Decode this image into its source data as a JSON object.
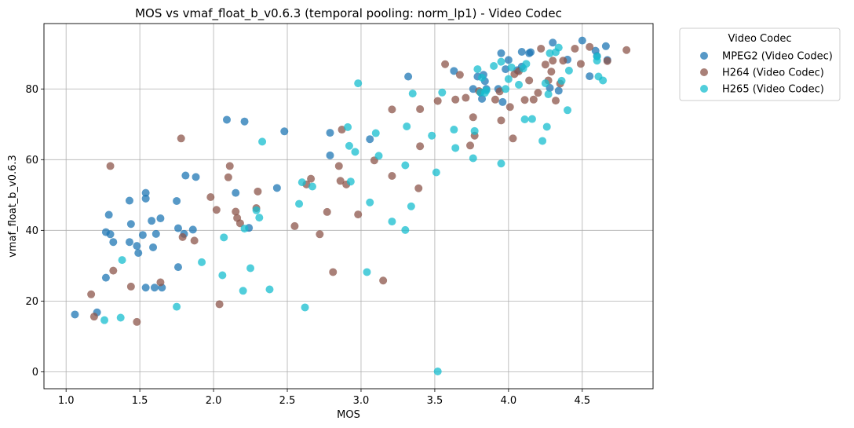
{
  "chart_data": {
    "type": "scatter",
    "title": "MOS vs vmaf_float_b_v0.6.3 (temporal pooling: norm_lp1) - Video Codec",
    "xlabel": "MOS",
    "ylabel": "vmaf_float_b_v0.6.3",
    "xlim": [
      0.85,
      4.98
    ],
    "ylim": [
      -4.8,
      98.5
    ],
    "xticks": [
      "1.0",
      "1.5",
      "2.0",
      "2.5",
      "3.0",
      "3.5",
      "4.0",
      "4.5"
    ],
    "yticks": [
      "0",
      "20",
      "40",
      "60",
      "80"
    ],
    "grid": true,
    "legend_title": "Video Codec",
    "legend_position": "outside-top-right",
    "series": [
      {
        "name": "MPEG2 (Video Codec)",
        "color": "#1f77b4",
        "points": [
          [
            1.06,
            16.2
          ],
          [
            1.21,
            16.8
          ],
          [
            1.27,
            26.6
          ],
          [
            1.27,
            39.5
          ],
          [
            1.29,
            44.4
          ],
          [
            1.3,
            38.9
          ],
          [
            1.32,
            36.7
          ],
          [
            1.43,
            48.4
          ],
          [
            1.43,
            36.7
          ],
          [
            1.44,
            41.8
          ],
          [
            1.48,
            35.6
          ],
          [
            1.49,
            33.6
          ],
          [
            1.52,
            38.7
          ],
          [
            1.54,
            50.6
          ],
          [
            1.54,
            49.0
          ],
          [
            1.54,
            23.8
          ],
          [
            1.58,
            42.7
          ],
          [
            1.59,
            35.2
          ],
          [
            1.6,
            23.8
          ],
          [
            1.61,
            39.0
          ],
          [
            1.64,
            43.4
          ],
          [
            1.65,
            23.8
          ],
          [
            1.75,
            48.3
          ],
          [
            1.76,
            40.6
          ],
          [
            1.76,
            29.6
          ],
          [
            1.8,
            39.0
          ],
          [
            1.81,
            55.5
          ],
          [
            1.86,
            40.2
          ],
          [
            1.88,
            55.1
          ],
          [
            2.09,
            71.3
          ],
          [
            2.15,
            50.6
          ],
          [
            2.21,
            70.8
          ],
          [
            2.24,
            40.7
          ],
          [
            2.43,
            52.0
          ],
          [
            2.48,
            68.0
          ],
          [
            2.79,
            67.6
          ],
          [
            2.79,
            61.2
          ],
          [
            3.06,
            65.8
          ],
          [
            3.32,
            83.5
          ],
          [
            3.63,
            85.1
          ],
          [
            3.76,
            80.0
          ],
          [
            3.79,
            83.5
          ],
          [
            3.81,
            79.0
          ],
          [
            3.82,
            77.2
          ],
          [
            3.83,
            84.0
          ],
          [
            3.84,
            82.2
          ],
          [
            3.85,
            80.0
          ],
          [
            3.93,
            80.0
          ],
          [
            3.95,
            90.1
          ],
          [
            3.96,
            76.3
          ],
          [
            3.98,
            85.6
          ],
          [
            4.0,
            88.2
          ],
          [
            4.06,
            85.3
          ],
          [
            4.09,
            86.3
          ],
          [
            4.09,
            90.5
          ],
          [
            4.14,
            90.1
          ],
          [
            4.15,
            90.4
          ],
          [
            4.28,
            80.3
          ],
          [
            4.3,
            93.1
          ],
          [
            4.34,
            79.5
          ],
          [
            4.4,
            88.3
          ],
          [
            4.5,
            93.7
          ],
          [
            4.55,
            83.6
          ],
          [
            4.59,
            90.8
          ],
          [
            4.6,
            89.3
          ],
          [
            4.66,
            92.1
          ],
          [
            4.67,
            88.2
          ]
        ]
      },
      {
        "name": "H264 (Video Codec)",
        "color": "#8c564b",
        "points": [
          [
            1.17,
            21.9
          ],
          [
            1.19,
            15.6
          ],
          [
            1.3,
            58.2
          ],
          [
            1.32,
            28.6
          ],
          [
            1.44,
            24.1
          ],
          [
            1.48,
            14.1
          ],
          [
            1.64,
            25.3
          ],
          [
            1.78,
            66.0
          ],
          [
            1.79,
            38.1
          ],
          [
            1.87,
            37.1
          ],
          [
            1.98,
            49.4
          ],
          [
            2.02,
            45.8
          ],
          [
            2.04,
            19.1
          ],
          [
            2.1,
            55.0
          ],
          [
            2.11,
            58.2
          ],
          [
            2.15,
            45.3
          ],
          [
            2.16,
            43.5
          ],
          [
            2.18,
            42.0
          ],
          [
            2.29,
            46.3
          ],
          [
            2.3,
            51.0
          ],
          [
            2.55,
            41.2
          ],
          [
            2.63,
            53.0
          ],
          [
            2.66,
            54.6
          ],
          [
            2.72,
            38.9
          ],
          [
            2.77,
            45.2
          ],
          [
            2.81,
            28.2
          ],
          [
            2.85,
            58.2
          ],
          [
            2.86,
            54.0
          ],
          [
            2.87,
            68.5
          ],
          [
            2.9,
            53.0
          ],
          [
            2.98,
            44.5
          ],
          [
            3.09,
            59.8
          ],
          [
            3.15,
            25.8
          ],
          [
            3.21,
            74.2
          ],
          [
            3.21,
            55.4
          ],
          [
            3.39,
            51.9
          ],
          [
            3.4,
            63.8
          ],
          [
            3.4,
            74.3
          ],
          [
            3.52,
            76.6
          ],
          [
            3.57,
            87.0
          ],
          [
            3.64,
            77.0
          ],
          [
            3.67,
            84.0
          ],
          [
            3.71,
            77.5
          ],
          [
            3.74,
            64.0
          ],
          [
            3.76,
            72.0
          ],
          [
            3.77,
            66.8
          ],
          [
            3.8,
            79.4
          ],
          [
            3.91,
            77.0
          ],
          [
            3.94,
            79.3
          ],
          [
            3.95,
            71.1
          ],
          [
            4.01,
            74.9
          ],
          [
            4.03,
            66.0
          ],
          [
            4.04,
            84.2
          ],
          [
            4.07,
            85.0
          ],
          [
            4.11,
            76.9
          ],
          [
            4.14,
            82.4
          ],
          [
            4.17,
            77.0
          ],
          [
            4.2,
            78.9
          ],
          [
            4.22,
            91.4
          ],
          [
            4.25,
            86.9
          ],
          [
            4.27,
            82.4
          ],
          [
            4.29,
            84.9
          ],
          [
            4.3,
            88.0
          ],
          [
            4.32,
            76.7
          ],
          [
            4.35,
            81.5
          ],
          [
            4.37,
            88.0
          ],
          [
            4.45,
            91.4
          ],
          [
            4.49,
            87.1
          ],
          [
            4.55,
            91.9
          ],
          [
            4.67,
            87.9
          ],
          [
            4.8,
            91.0
          ]
        ]
      },
      {
        "name": "H265 (Video Codec)",
        "color": "#17becf",
        "points": [
          [
            1.26,
            14.6
          ],
          [
            1.37,
            15.3
          ],
          [
            1.38,
            31.6
          ],
          [
            1.75,
            18.4
          ],
          [
            1.92,
            31.0
          ],
          [
            2.06,
            27.3
          ],
          [
            2.07,
            38.0
          ],
          [
            2.2,
            22.9
          ],
          [
            2.21,
            40.5
          ],
          [
            2.25,
            29.3
          ],
          [
            2.29,
            45.7
          ],
          [
            2.31,
            43.6
          ],
          [
            2.33,
            65.1
          ],
          [
            2.38,
            23.3
          ],
          [
            2.58,
            47.5
          ],
          [
            2.6,
            53.6
          ],
          [
            2.62,
            18.2
          ],
          [
            2.67,
            52.4
          ],
          [
            2.91,
            69.2
          ],
          [
            2.92,
            63.9
          ],
          [
            2.93,
            53.8
          ],
          [
            2.96,
            62.2
          ],
          [
            2.98,
            81.6
          ],
          [
            3.04,
            28.2
          ],
          [
            3.06,
            47.9
          ],
          [
            3.1,
            67.5
          ],
          [
            3.12,
            61.1
          ],
          [
            3.21,
            42.5
          ],
          [
            3.3,
            40.1
          ],
          [
            3.3,
            58.4
          ],
          [
            3.31,
            69.4
          ],
          [
            3.34,
            46.8
          ],
          [
            3.35,
            78.7
          ],
          [
            3.48,
            66.8
          ],
          [
            3.51,
            56.4
          ],
          [
            3.52,
            0.1
          ],
          [
            3.55,
            79.0
          ],
          [
            3.63,
            68.5
          ],
          [
            3.64,
            63.3
          ],
          [
            3.76,
            60.4
          ],
          [
            3.77,
            68.1
          ],
          [
            3.79,
            85.6
          ],
          [
            3.81,
            79.0
          ],
          [
            3.82,
            83.2
          ],
          [
            3.84,
            78.9
          ],
          [
            3.85,
            79.6
          ],
          [
            3.9,
            86.5
          ],
          [
            3.95,
            58.9
          ],
          [
            3.95,
            87.7
          ],
          [
            3.98,
            80.0
          ],
          [
            4.0,
            82.8
          ],
          [
            4.02,
            86.1
          ],
          [
            4.07,
            81.2
          ],
          [
            4.1,
            85.8
          ],
          [
            4.11,
            71.4
          ],
          [
            4.12,
            87.1
          ],
          [
            4.16,
            71.5
          ],
          [
            4.23,
            65.3
          ],
          [
            4.25,
            81.6
          ],
          [
            4.26,
            69.3
          ],
          [
            4.27,
            78.5
          ],
          [
            4.28,
            90.1
          ],
          [
            4.32,
            90.4
          ],
          [
            4.34,
            91.7
          ],
          [
            4.36,
            82.3
          ],
          [
            4.4,
            74.0
          ],
          [
            4.41,
            85.2
          ],
          [
            4.6,
            89.2
          ],
          [
            4.6,
            88.0
          ],
          [
            4.61,
            83.5
          ],
          [
            4.64,
            82.4
          ]
        ]
      }
    ]
  }
}
